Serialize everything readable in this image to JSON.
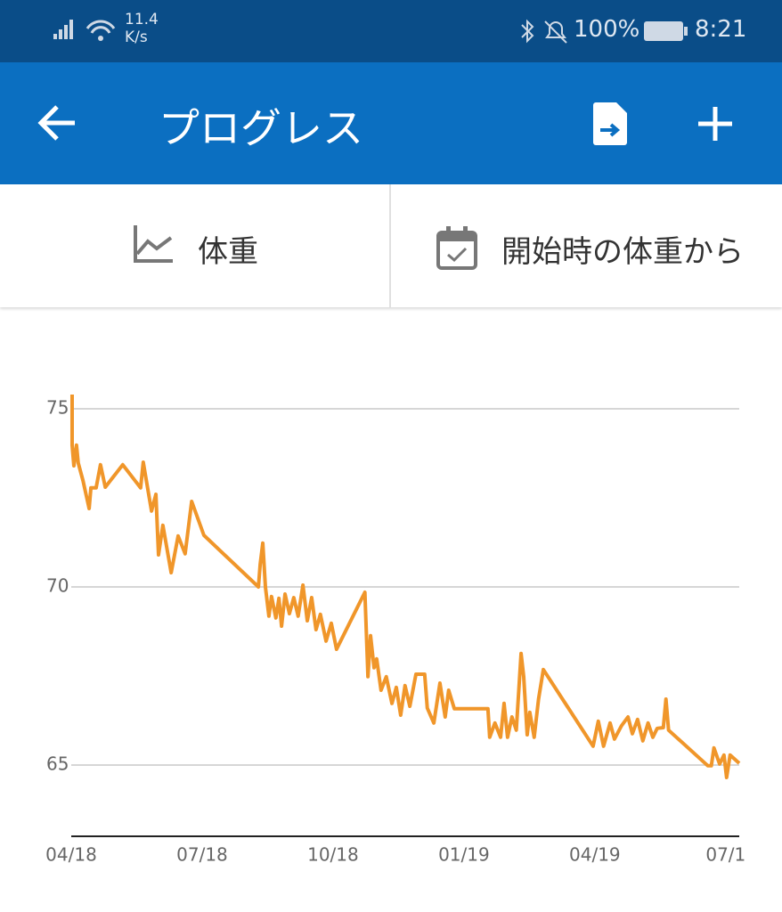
{
  "status_bar": {
    "speed_value": "11.4",
    "speed_unit": "K/s",
    "battery": "100%",
    "time": "8:21"
  },
  "app_bar": {
    "title": "プログレス"
  },
  "tabs": [
    "体重",
    "開始時の体重から"
  ],
  "chart_data": {
    "type": "line",
    "x": [
      0.02,
      0.02,
      0.06,
      0.12,
      0.16,
      0.27,
      0.41,
      0.45,
      0.57,
      0.67,
      0.78,
      1.18,
      1.59,
      1.65,
      1.84,
      1.94,
      2.0,
      2.1,
      2.29,
      2.45,
      2.61,
      2.76,
      3.04,
      4.29,
      4.33,
      4.39,
      4.45,
      4.53,
      4.59,
      4.69,
      4.76,
      4.82,
      4.9,
      5.0,
      5.1,
      5.2,
      5.31,
      5.41,
      5.51,
      5.61,
      5.71,
      5.84,
      5.96,
      6.08,
      6.73,
      6.8,
      6.86,
      6.94,
      7.0,
      7.1,
      7.22,
      7.35,
      7.45,
      7.55,
      7.65,
      7.76,
      7.9,
      8.1,
      8.16,
      8.31,
      8.45,
      8.57,
      8.65,
      8.78,
      9.55,
      9.59,
      9.71,
      9.84,
      9.92,
      10.0,
      10.1,
      10.2,
      10.31,
      10.37,
      10.45,
      10.51,
      10.61,
      10.71,
      10.82,
      11.96,
      12.08,
      12.2,
      12.35,
      12.45,
      12.61,
      12.76,
      12.86,
      12.98,
      13.1,
      13.22,
      13.33,
      13.43,
      13.57,
      13.63,
      13.69,
      14.59,
      14.67,
      14.73,
      14.86,
      14.96,
      15.02,
      15.1,
      15.31
    ],
    "series": [
      {
        "name": "体重",
        "color": "#f0962a",
        "values": [
          75.4,
          73.98,
          73.4,
          73.98,
          73.48,
          72.98,
          72.2,
          72.78,
          72.78,
          73.43,
          72.8,
          73.43,
          72.78,
          73.5,
          72.13,
          72.6,
          70.9,
          71.73,
          70.4,
          71.43,
          70.93,
          72.4,
          71.45,
          70.0,
          70.63,
          71.23,
          70.0,
          69.18,
          69.73,
          69.13,
          69.68,
          68.9,
          69.8,
          69.25,
          69.7,
          69.18,
          70.05,
          69.05,
          69.7,
          68.8,
          69.23,
          68.48,
          68.98,
          68.25,
          69.85,
          67.48,
          68.63,
          67.73,
          67.98,
          67.1,
          67.48,
          66.73,
          67.18,
          66.4,
          67.23,
          66.65,
          67.55,
          67.55,
          66.6,
          66.18,
          67.3,
          66.35,
          67.1,
          66.58,
          66.58,
          65.78,
          66.18,
          65.78,
          66.73,
          65.78,
          66.35,
          65.98,
          68.13,
          67.48,
          65.85,
          66.48,
          65.78,
          66.85,
          67.68,
          65.53,
          66.23,
          65.53,
          66.18,
          65.73,
          66.1,
          66.35,
          65.88,
          66.28,
          65.68,
          66.18,
          65.78,
          66.03,
          66.05,
          66.85,
          65.98,
          64.98,
          64.98,
          65.48,
          65.03,
          65.28,
          64.65,
          65.28,
          65.05
        ]
      }
    ],
    "xlim": [
      0,
      15.31
    ],
    "xticks": [
      {
        "value": 0,
        "label": "04/18"
      },
      {
        "value": 3,
        "label": "07/18"
      },
      {
        "value": 6,
        "label": "10/18"
      },
      {
        "value": 9,
        "label": "01/19"
      },
      {
        "value": 12,
        "label": "04/19"
      },
      {
        "value": 15,
        "label": "07/1"
      }
    ],
    "ylim": [
      63,
      76.2
    ],
    "yticks": [
      65,
      70,
      75
    ],
    "grid": true
  }
}
